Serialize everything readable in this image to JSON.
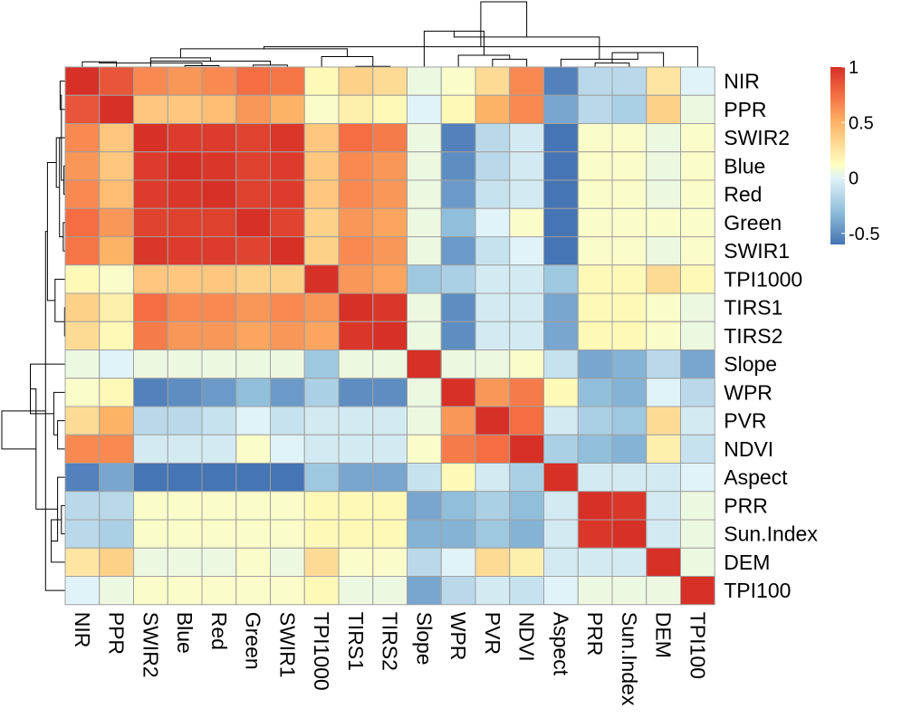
{
  "chart_data": {
    "type": "heatmap",
    "title": "",
    "xlabel": "",
    "ylabel": "",
    "labels": [
      "NIR",
      "PPR",
      "SWIR2",
      "Blue",
      "Red",
      "Green",
      "SWIR1",
      "TPI1000",
      "TIRS1",
      "TIRS2",
      "Slope",
      "WPR",
      "PVR",
      "NDVI",
      "Aspect",
      "PRR",
      "Sun.Index",
      "DEM",
      "TPI100"
    ],
    "matrix": [
      [
        1.0,
        0.85,
        0.65,
        0.6,
        0.65,
        0.75,
        0.72,
        0.15,
        0.35,
        0.3,
        0.05,
        0.1,
        0.3,
        0.65,
        -0.55,
        -0.15,
        -0.15,
        0.25,
        0.0
      ],
      [
        0.85,
        1.0,
        0.4,
        0.4,
        0.45,
        0.6,
        0.5,
        0.1,
        0.2,
        0.15,
        0.0,
        0.15,
        0.5,
        0.65,
        -0.4,
        -0.15,
        -0.2,
        0.35,
        0.05
      ],
      [
        0.65,
        0.4,
        1.0,
        0.95,
        0.95,
        0.92,
        0.97,
        0.4,
        0.75,
        0.7,
        0.05,
        -0.55,
        -0.15,
        -0.05,
        -0.6,
        0.1,
        0.1,
        0.05,
        0.1
      ],
      [
        0.6,
        0.4,
        0.95,
        1.0,
        0.97,
        0.93,
        0.95,
        0.4,
        0.65,
        0.6,
        0.05,
        -0.5,
        -0.15,
        -0.05,
        -0.6,
        0.1,
        0.1,
        0.05,
        0.1
      ],
      [
        0.65,
        0.45,
        0.95,
        0.97,
        1.0,
        0.93,
        0.95,
        0.4,
        0.65,
        0.6,
        0.05,
        -0.45,
        -0.1,
        -0.05,
        -0.6,
        0.1,
        0.1,
        0.05,
        0.1
      ],
      [
        0.75,
        0.6,
        0.92,
        0.93,
        0.93,
        1.0,
        0.92,
        0.35,
        0.6,
        0.55,
        0.05,
        -0.3,
        0.0,
        0.1,
        -0.6,
        0.1,
        0.1,
        0.1,
        0.1
      ],
      [
        0.72,
        0.5,
        0.97,
        0.95,
        0.95,
        0.92,
        1.0,
        0.35,
        0.65,
        0.6,
        0.05,
        -0.45,
        -0.1,
        0.0,
        -0.6,
        0.1,
        0.1,
        0.05,
        0.1
      ],
      [
        0.15,
        0.1,
        0.4,
        0.4,
        0.4,
        0.35,
        0.35,
        1.0,
        0.6,
        0.55,
        -0.25,
        -0.2,
        -0.05,
        -0.05,
        -0.25,
        0.15,
        0.15,
        0.3,
        0.15
      ],
      [
        0.35,
        0.2,
        0.75,
        0.65,
        0.65,
        0.6,
        0.65,
        0.6,
        1.0,
        0.97,
        0.05,
        -0.5,
        -0.05,
        -0.05,
        -0.4,
        0.15,
        0.15,
        0.1,
        0.05
      ],
      [
        0.3,
        0.15,
        0.7,
        0.6,
        0.6,
        0.55,
        0.6,
        0.55,
        0.97,
        1.0,
        0.05,
        -0.5,
        -0.05,
        -0.05,
        -0.4,
        0.15,
        0.15,
        0.1,
        0.05
      ],
      [
        0.05,
        0.0,
        0.05,
        0.05,
        0.05,
        0.05,
        0.05,
        -0.25,
        0.05,
        0.05,
        1.0,
        0.05,
        0.05,
        0.1,
        -0.1,
        -0.4,
        -0.35,
        -0.15,
        -0.4
      ],
      [
        0.1,
        0.15,
        -0.55,
        -0.5,
        -0.45,
        -0.3,
        -0.45,
        -0.2,
        -0.5,
        -0.5,
        0.05,
        1.0,
        0.6,
        0.7,
        0.15,
        -0.3,
        -0.35,
        0.0,
        -0.15
      ],
      [
        0.3,
        0.5,
        -0.15,
        -0.15,
        -0.1,
        0.0,
        -0.1,
        -0.05,
        -0.05,
        -0.05,
        0.05,
        0.6,
        1.0,
        0.75,
        -0.05,
        -0.2,
        -0.25,
        0.3,
        -0.05
      ],
      [
        0.65,
        0.65,
        -0.05,
        -0.05,
        -0.05,
        0.1,
        0.0,
        -0.05,
        -0.05,
        -0.05,
        0.1,
        0.7,
        0.75,
        1.0,
        -0.2,
        -0.3,
        -0.35,
        0.2,
        -0.1
      ],
      [
        -0.55,
        -0.4,
        -0.6,
        -0.6,
        -0.6,
        -0.6,
        -0.6,
        -0.25,
        -0.4,
        -0.4,
        -0.1,
        0.15,
        -0.05,
        -0.2,
        1.0,
        -0.05,
        -0.05,
        -0.05,
        0.0
      ],
      [
        -0.15,
        -0.15,
        0.1,
        0.1,
        0.1,
        0.1,
        0.1,
        0.15,
        0.15,
        0.15,
        -0.4,
        -0.3,
        -0.2,
        -0.3,
        -0.05,
        1.0,
        0.97,
        -0.05,
        0.05
      ],
      [
        -0.15,
        -0.2,
        0.1,
        0.1,
        0.1,
        0.1,
        0.1,
        0.15,
        0.15,
        0.15,
        -0.35,
        -0.35,
        -0.25,
        -0.35,
        -0.05,
        0.97,
        1.0,
        -0.05,
        0.05
      ],
      [
        0.25,
        0.35,
        0.05,
        0.05,
        0.05,
        0.1,
        0.05,
        0.3,
        0.1,
        0.1,
        -0.15,
        0.0,
        0.3,
        0.2,
        -0.05,
        -0.05,
        -0.05,
        1.0,
        0.05
      ],
      [
        0.0,
        0.05,
        0.1,
        0.1,
        0.1,
        0.1,
        0.1,
        0.15,
        0.05,
        0.05,
        -0.4,
        -0.15,
        -0.05,
        -0.1,
        0.0,
        0.05,
        0.05,
        0.05,
        1.0
      ]
    ],
    "color_scale": {
      "min": -0.6,
      "max": 1.0,
      "stops": [
        {
          "value": -0.6,
          "color": "#4575b4"
        },
        {
          "value": -0.3,
          "color": "#91bfdb"
        },
        {
          "value": 0.0,
          "color": "#e0f3f8"
        },
        {
          "value": 0.12,
          "color": "#ffffbf"
        },
        {
          "value": 0.5,
          "color": "#fdb366"
        },
        {
          "value": 0.75,
          "color": "#f46d43"
        },
        {
          "value": 1.0,
          "color": "#d73027"
        }
      ],
      "ticks": [
        {
          "value": 1.0,
          "label": "1"
        },
        {
          "value": 0.5,
          "label": "0.5"
        },
        {
          "value": 0.0,
          "label": "0"
        },
        {
          "value": -0.5,
          "label": "-0.5"
        }
      ]
    },
    "dendrogram_top": [
      {
        "a": 0,
        "b": 1,
        "h": 0.08
      },
      {
        "a": 3,
        "b": 4,
        "h": 0.02
      },
      {
        "a": 5,
        "b": 6,
        "h": 0.03
      },
      {
        "a": 19,
        "b": 20,
        "h": 0.06
      },
      {
        "a": 2,
        "b": 21,
        "h": 0.09
      },
      {
        "a": 22,
        "b": 23,
        "h": 0.14
      },
      {
        "a": 8,
        "b": 9,
        "h": 0.01
      },
      {
        "a": 7,
        "b": 25,
        "h": 0.16
      },
      {
        "a": 24,
        "b": 26,
        "h": 0.28
      },
      {
        "a": 18,
        "b": 27,
        "h": 0.31
      },
      {
        "a": 12,
        "b": 13,
        "h": 0.12
      },
      {
        "a": 11,
        "b": 29,
        "h": 0.18
      },
      {
        "a": 10,
        "b": 30,
        "h": 0.55
      },
      {
        "a": 15,
        "b": 16,
        "h": 0.06
      },
      {
        "a": 17,
        "b": 32,
        "h": 0.22
      },
      {
        "a": 33,
        "b": 14,
        "h": 0.12
      },
      {
        "a": 31,
        "b": 34,
        "h": 0.46
      },
      {
        "a": 28,
        "b": 35,
        "h": 1.0
      }
    ]
  }
}
